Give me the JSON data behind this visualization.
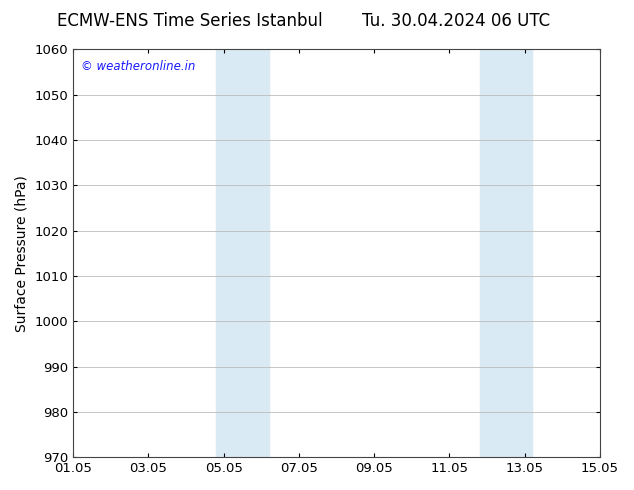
{
  "title_left": "ECMW-ENS Time Series Istanbul",
  "title_right": "Tu. 30.04.2024 06 UTC",
  "ylabel": "Surface Pressure (hPa)",
  "ylim": [
    970,
    1060
  ],
  "yticks": [
    970,
    980,
    990,
    1000,
    1010,
    1020,
    1030,
    1040,
    1050,
    1060
  ],
  "xtick_labels": [
    "01.05",
    "03.05",
    "05.05",
    "07.05",
    "09.05",
    "11.05",
    "13.05",
    "15.05"
  ],
  "xtick_positions": [
    0,
    2,
    4,
    6,
    8,
    10,
    12,
    14
  ],
  "x_start": 0,
  "x_end": 14,
  "shaded_bands": [
    {
      "x_start": 3.8,
      "x_end": 5.2,
      "color": "#daeaf5"
    },
    {
      "x_start": 10.8,
      "x_end": 12.2,
      "color": "#daeaf5"
    }
  ],
  "background_color": "#ffffff",
  "plot_bg_color": "#ffffff",
  "watermark_text": "© weatheronline.in",
  "watermark_color": "#1a1aff",
  "grid_color": "#bbbbbb",
  "border_color": "#444444",
  "title_fontsize": 12,
  "label_fontsize": 10,
  "tick_fontsize": 9.5
}
